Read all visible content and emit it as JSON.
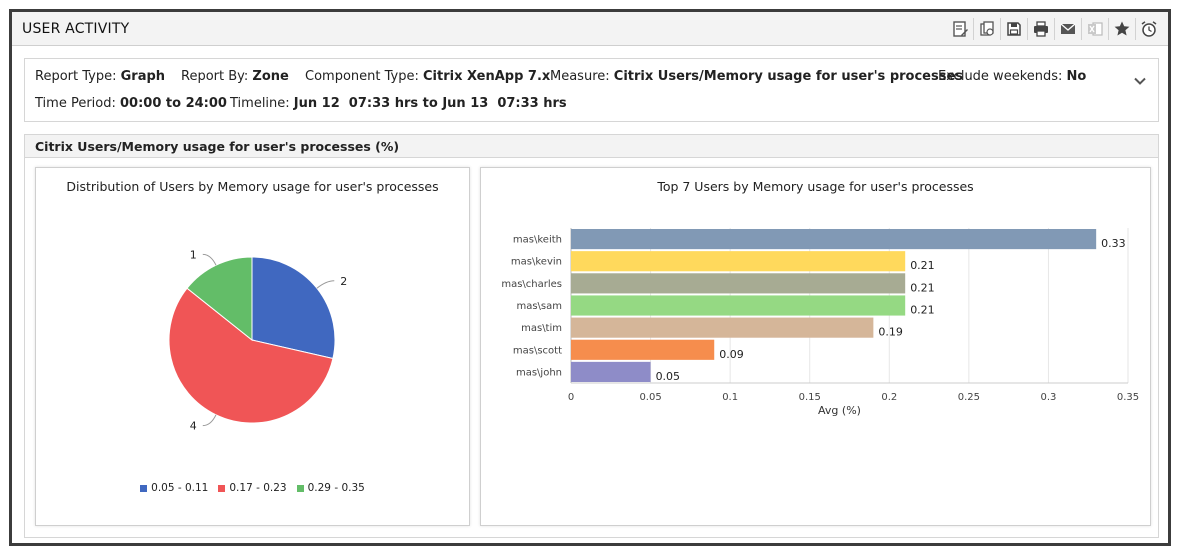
{
  "window": {
    "title": "USER ACTIVITY"
  },
  "toolbar": {
    "icons": [
      "edit-report-icon",
      "copy-icon",
      "save-icon",
      "print-icon",
      "email-icon",
      "excel-icon",
      "favorite-icon",
      "alarm-icon"
    ]
  },
  "info": {
    "report_type_label": "Report Type:",
    "report_type_value": "Graph",
    "report_by_label": "Report By:",
    "report_by_value": "Zone",
    "component_type_label": "Component Type:",
    "component_type_value": "Citrix XenApp 7.x",
    "measure_label": "Measure:",
    "measure_value": "Citrix Users/Memory usage for user's processes",
    "exclude_weekends_label": "Exclude weekends:",
    "exclude_weekends_value": "No",
    "time_period_label": "Time Period:",
    "time_period_value": "00:00 to 24:00",
    "timeline_label": "Timeline:",
    "timeline_value": "Jun 12  07:33 hrs to Jun 13  07:33 hrs"
  },
  "panel": {
    "title": "Citrix Users/Memory usage for user's processes (%)"
  },
  "colors": {
    "blue": "#4068c0",
    "red": "#f05556",
    "green": "#63bd68"
  },
  "chart_data": [
    {
      "type": "pie",
      "title": "Distribution of Users by Memory usage for user's processes",
      "categories": [
        "0.05 - 0.11",
        "0.17 - 0.23",
        "0.29 - 0.35"
      ],
      "values": [
        2,
        4,
        1
      ],
      "colors": [
        "#4068c0",
        "#f05556",
        "#63bd68"
      ],
      "legend": "bottom"
    },
    {
      "type": "bar",
      "orientation": "horizontal",
      "title": "Top 7 Users by Memory usage for user's processes",
      "categories": [
        "mas\\keith",
        "mas\\kevin",
        "mas\\charles",
        "mas\\sam",
        "mas\\tim",
        "mas\\scott",
        "mas\\john"
      ],
      "values": [
        0.33,
        0.21,
        0.21,
        0.21,
        0.19,
        0.09,
        0.05
      ],
      "colors": [
        "#8199b5",
        "#ffd95c",
        "#a7ab93",
        "#95d983",
        "#d5b699",
        "#f68d4d",
        "#8e8cc8"
      ],
      "xlabel": "Avg (%)",
      "xlim": [
        0,
        0.35
      ],
      "xticks": [
        "0",
        "0.05",
        "0.1",
        "0.15",
        "0.2",
        "0.25",
        "0.3",
        "0.35"
      ],
      "grid": true
    }
  ]
}
